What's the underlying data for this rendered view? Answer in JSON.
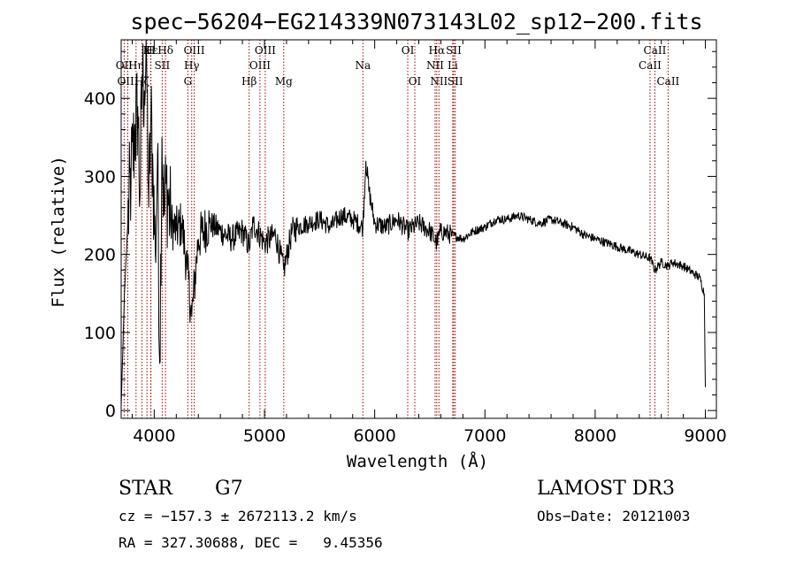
{
  "chart_data": {
    "type": "line",
    "title": "spec−56204−EG214339N073143L02_sp12−200.fits",
    "xlabel": "Wavelength (Å)",
    "ylabel": "Flux (relative)",
    "xlim": [
      3700,
      9100
    ],
    "ylim": [
      -10,
      475
    ],
    "xticks": [
      4000,
      5000,
      6000,
      7000,
      8000,
      9000
    ],
    "yticks": [
      0,
      100,
      200,
      300,
      400
    ],
    "grid": false,
    "series": [
      {
        "x": [
          3700,
          3730,
          3760,
          3790,
          3820,
          3850,
          3870,
          3890,
          3910,
          3930,
          3950,
          3970,
          3990,
          4010,
          4030,
          4050,
          4070,
          4090,
          4110,
          4150,
          4200,
          4250,
          4300,
          4340,
          4400,
          4500,
          4600,
          4700,
          4800,
          4861,
          4900,
          5000,
          5100,
          5175,
          5250,
          5300,
          5400,
          5500,
          5600,
          5700,
          5800,
          5893,
          5920,
          5950,
          6000,
          6100,
          6200,
          6300,
          6400,
          6500,
          6563,
          6600,
          6700,
          6800,
          6900,
          7000,
          7100,
          7200,
          7300,
          7400,
          7500,
          7600,
          7700,
          7800,
          7900,
          8000,
          8100,
          8200,
          8300,
          8400,
          8500,
          8542,
          8600,
          8662,
          8700,
          8800,
          8850,
          8900,
          8950,
          8990,
          9000
        ],
        "values": [
          5,
          150,
          240,
          300,
          350,
          390,
          270,
          430,
          410,
          450,
          260,
          380,
          300,
          200,
          330,
          60,
          350,
          250,
          290,
          240,
          230,
          240,
          180,
          120,
          220,
          240,
          230,
          220,
          230,
          210,
          240,
          215,
          225,
          180,
          230,
          235,
          240,
          245,
          235,
          250,
          245,
          235,
          320,
          280,
          240,
          235,
          245,
          230,
          240,
          230,
          215,
          230,
          225,
          220,
          230,
          235,
          245,
          245,
          250,
          245,
          240,
          245,
          240,
          235,
          225,
          220,
          215,
          210,
          205,
          200,
          195,
          180,
          190,
          185,
          190,
          185,
          180,
          175,
          170,
          150,
          30
        ]
      }
    ],
    "lines": [
      {
        "name": "Hε",
        "x": 3970,
        "row": 0
      },
      {
        "name": "K",
        "x": 3934,
        "row": 0
      },
      {
        "name": "H",
        "x": 3968,
        "row": 0
      },
      {
        "name": "Hδ",
        "x": 4102,
        "row": 0
      },
      {
        "name": "OIII",
        "x": 4363,
        "row": 0
      },
      {
        "name": "OIII",
        "x": 5007,
        "row": 0
      },
      {
        "name": "OI",
        "x": 6300,
        "row": 0
      },
      {
        "name": "Hα",
        "x": 6563,
        "row": 0
      },
      {
        "name": "SII",
        "x": 6717,
        "row": 0
      },
      {
        "name": "CaII",
        "x": 8542,
        "row": 0
      },
      {
        "name": "OII",
        "x": 3727,
        "row": 1
      },
      {
        "name": "Hη",
        "x": 3835,
        "row": 1
      },
      {
        "name": "SII",
        "x": 4072,
        "row": 1
      },
      {
        "name": "Hγ",
        "x": 4340,
        "row": 1
      },
      {
        "name": "OIII",
        "x": 4959,
        "row": 1
      },
      {
        "name": "Na",
        "x": 5893,
        "row": 1
      },
      {
        "name": "NII",
        "x": 6548,
        "row": 1
      },
      {
        "name": "Li",
        "x": 6708,
        "row": 1
      },
      {
        "name": "CaII",
        "x": 8498,
        "row": 1
      },
      {
        "name": "OIII",
        "x": 3760,
        "row": 2
      },
      {
        "name": "Hζ",
        "x": 3889,
        "row": 2
      },
      {
        "name": "G",
        "x": 4305,
        "row": 2
      },
      {
        "name": "Hβ",
        "x": 4861,
        "row": 2
      },
      {
        "name": "Mg",
        "x": 5175,
        "row": 2
      },
      {
        "name": "OI",
        "x": 6364,
        "row": 2
      },
      {
        "name": "NII",
        "x": 6583,
        "row": 2
      },
      {
        "name": "SII",
        "x": 6731,
        "row": 2
      },
      {
        "name": "CaII",
        "x": 8662,
        "row": 2
      }
    ]
  },
  "info": {
    "object_class": "STAR",
    "subclass": "G7",
    "survey": "LAMOST DR3",
    "cz": "cz = −157.3 ± 2672113.2 km/s",
    "obs_date": "Obs−Date: 20121003",
    "coords": "RA = 327.30688, DEC =   9.45356"
  },
  "colors": {
    "spectrum": "#000000",
    "line_marker": "#a00000",
    "axis": "#000000"
  }
}
